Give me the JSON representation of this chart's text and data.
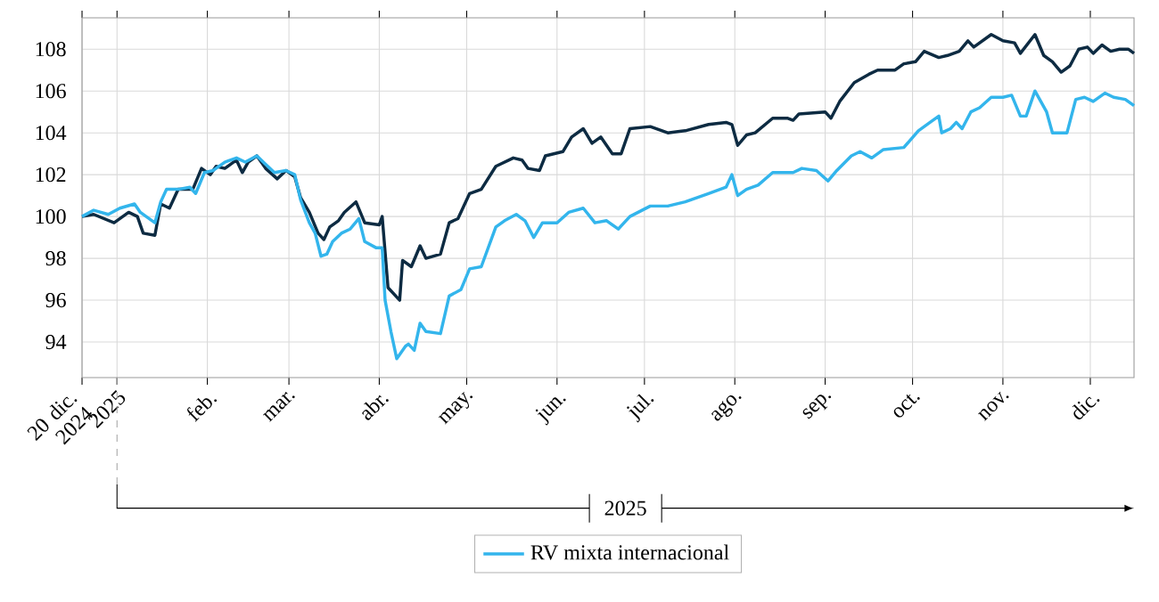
{
  "chart_data": {
    "type": "line",
    "xlim": [
      "2024-12-20",
      "2025-12-16"
    ],
    "ylim": [
      92.3,
      109.5
    ],
    "xticks": [
      {
        "value": "2024-12-20",
        "label": "20 dic. 2024"
      },
      {
        "value": "2025-01-01",
        "label": "2025"
      },
      {
        "value": "2025-02-01",
        "label": "feb."
      },
      {
        "value": "2025-03-01",
        "label": "mar."
      },
      {
        "value": "2025-04-01",
        "label": "abr."
      },
      {
        "value": "2025-05-01",
        "label": "may."
      },
      {
        "value": "2025-06-01",
        "label": "jun."
      },
      {
        "value": "2025-07-01",
        "label": "jul."
      },
      {
        "value": "2025-08-01",
        "label": "ago."
      },
      {
        "value": "2025-09-01",
        "label": "sep."
      },
      {
        "value": "2025-10-01",
        "label": "oct."
      },
      {
        "value": "2025-11-01",
        "label": "nov."
      },
      {
        "value": "2025-12-01",
        "label": "dic."
      }
    ],
    "yticks": [
      94,
      96,
      98,
      100,
      102,
      104,
      106,
      108
    ],
    "grid": true,
    "legend": "bottom",
    "annotations": [
      "2025"
    ],
    "series": [
      {
        "color": "#0d2b42",
        "x": [
          "2024-12-20",
          "2024-12-24",
          "2024-12-31",
          "2025-01-05",
          "2025-01-08",
          "2025-01-10",
          "2025-01-14",
          "2025-01-16",
          "2025-01-19",
          "2025-01-22",
          "2025-01-27",
          "2025-01-30",
          "2025-02-02",
          "2025-02-04",
          "2025-02-07",
          "2025-02-11",
          "2025-02-13",
          "2025-02-15",
          "2025-02-18",
          "2025-02-21",
          "2025-02-25",
          "2025-02-28",
          "2025-03-03",
          "2025-03-05",
          "2025-03-08",
          "2025-03-11",
          "2025-03-13",
          "2025-03-15",
          "2025-03-18",
          "2025-03-20",
          "2025-03-24",
          "2025-03-27",
          "2025-04-01",
          "2025-04-02",
          "2025-04-04",
          "2025-04-08",
          "2025-04-09",
          "2025-04-12",
          "2025-04-15",
          "2025-04-17",
          "2025-04-22",
          "2025-04-25",
          "2025-04-28",
          "2025-05-02",
          "2025-05-06",
          "2025-05-11",
          "2025-05-17",
          "2025-05-20",
          "2025-05-22",
          "2025-05-26",
          "2025-05-28",
          "2025-06-03",
          "2025-06-06",
          "2025-06-10",
          "2025-06-13",
          "2025-06-16",
          "2025-06-20",
          "2025-06-23",
          "2025-06-26",
          "2025-07-03",
          "2025-07-09",
          "2025-07-15",
          "2025-07-23",
          "2025-07-29",
          "2025-07-31",
          "2025-08-02",
          "2025-08-05",
          "2025-08-08",
          "2025-08-14",
          "2025-08-19",
          "2025-08-21",
          "2025-08-23",
          "2025-09-01",
          "2025-09-03",
          "2025-09-06",
          "2025-09-11",
          "2025-09-16",
          "2025-09-19",
          "2025-09-25",
          "2025-09-28",
          "2025-10-02",
          "2025-10-05",
          "2025-10-10",
          "2025-10-13",
          "2025-10-17",
          "2025-10-20",
          "2025-10-22",
          "2025-10-28",
          "2025-11-01",
          "2025-11-05",
          "2025-11-07",
          "2025-11-12",
          "2025-11-15",
          "2025-11-18",
          "2025-11-21",
          "2025-11-24",
          "2025-11-27",
          "2025-11-30",
          "2025-12-02",
          "2025-12-05",
          "2025-12-08",
          "2025-12-11",
          "2025-12-14",
          "2025-12-16"
        ],
        "values": [
          100.0,
          100.1,
          99.7,
          100.2,
          100.0,
          99.2,
          99.1,
          100.6,
          100.4,
          101.3,
          101.3,
          102.3,
          102.0,
          102.4,
          102.3,
          102.7,
          102.1,
          102.6,
          102.9,
          102.3,
          101.8,
          102.2,
          101.9,
          100.9,
          100.2,
          99.2,
          98.9,
          99.5,
          99.8,
          100.2,
          100.7,
          99.7,
          99.6,
          100.0,
          96.6,
          96.0,
          97.9,
          97.6,
          98.6,
          98.0,
          98.2,
          99.7,
          99.9,
          101.1,
          101.3,
          102.4,
          102.8,
          102.7,
          102.3,
          102.2,
          102.9,
          103.1,
          103.8,
          104.2,
          103.5,
          103.8,
          103.0,
          103.0,
          104.2,
          104.3,
          104.0,
          104.1,
          104.4,
          104.5,
          104.4,
          103.4,
          103.9,
          104.0,
          104.7,
          104.7,
          104.6,
          104.9,
          105.0,
          104.7,
          105.5,
          106.4,
          106.8,
          107.0,
          107.0,
          107.3,
          107.4,
          107.9,
          107.6,
          107.7,
          107.9,
          108.4,
          108.1,
          108.7,
          108.4,
          108.3,
          107.8,
          108.7,
          107.7,
          107.4,
          106.9,
          107.2,
          108.0,
          108.1,
          107.8,
          108.2,
          107.9,
          108.0,
          108.0,
          107.8
        ]
      },
      {
        "name": "RV mixta internacional",
        "color": "#33b5ec",
        "x": [
          "2024-12-20",
          "2024-12-24",
          "2024-12-29",
          "2025-01-02",
          "2025-01-07",
          "2025-01-09",
          "2025-01-11",
          "2025-01-14",
          "2025-01-16",
          "2025-01-18",
          "2025-01-22",
          "2025-01-26",
          "2025-01-28",
          "2025-01-31",
          "2025-02-03",
          "2025-02-07",
          "2025-02-11",
          "2025-02-14",
          "2025-02-18",
          "2025-02-21",
          "2025-02-24",
          "2025-02-28",
          "2025-03-03",
          "2025-03-05",
          "2025-03-08",
          "2025-03-10",
          "2025-03-12",
          "2025-03-14",
          "2025-03-16",
          "2025-03-19",
          "2025-03-22",
          "2025-03-25",
          "2025-03-27",
          "2025-03-31",
          "2025-04-02",
          "2025-04-03",
          "2025-04-05",
          "2025-04-07",
          "2025-04-10",
          "2025-04-11",
          "2025-04-13",
          "2025-04-15",
          "2025-04-17",
          "2025-04-22",
          "2025-04-25",
          "2025-04-29",
          "2025-05-02",
          "2025-05-06",
          "2025-05-11",
          "2025-05-14",
          "2025-05-18",
          "2025-05-21",
          "2025-05-24",
          "2025-05-27",
          "2025-06-01",
          "2025-06-05",
          "2025-06-10",
          "2025-06-14",
          "2025-06-18",
          "2025-06-22",
          "2025-06-26",
          "2025-07-03",
          "2025-07-09",
          "2025-07-15",
          "2025-07-23",
          "2025-07-29",
          "2025-07-31",
          "2025-08-02",
          "2025-08-05",
          "2025-08-09",
          "2025-08-14",
          "2025-08-21",
          "2025-08-24",
          "2025-08-29",
          "2025-09-02",
          "2025-09-05",
          "2025-09-10",
          "2025-09-13",
          "2025-09-17",
          "2025-09-21",
          "2025-09-28",
          "2025-10-03",
          "2025-10-07",
          "2025-10-10",
          "2025-10-11",
          "2025-10-14",
          "2025-10-16",
          "2025-10-18",
          "2025-10-21",
          "2025-10-24",
          "2025-10-28",
          "2025-11-01",
          "2025-11-04",
          "2025-11-07",
          "2025-11-09",
          "2025-11-12",
          "2025-11-16",
          "2025-11-18",
          "2025-11-23",
          "2025-11-26",
          "2025-11-29",
          "2025-12-02",
          "2025-12-06",
          "2025-12-09",
          "2025-12-13",
          "2025-12-16"
        ],
        "values": [
          100.0,
          100.3,
          100.1,
          100.4,
          100.6,
          100.2,
          100.0,
          99.7,
          100.7,
          101.3,
          101.3,
          101.4,
          101.1,
          102.1,
          102.2,
          102.6,
          102.8,
          102.6,
          102.9,
          102.5,
          102.1,
          102.2,
          102.0,
          100.8,
          99.7,
          99.2,
          98.1,
          98.2,
          98.8,
          99.2,
          99.4,
          99.9,
          98.8,
          98.5,
          98.5,
          96.0,
          94.5,
          93.2,
          93.8,
          93.9,
          93.6,
          94.9,
          94.5,
          94.4,
          96.2,
          96.5,
          97.5,
          97.6,
          99.5,
          99.8,
          100.1,
          99.8,
          99.0,
          99.7,
          99.7,
          100.2,
          100.4,
          99.7,
          99.8,
          99.4,
          100.0,
          100.5,
          100.5,
          100.7,
          101.1,
          101.4,
          102.0,
          101.0,
          101.3,
          101.5,
          102.1,
          102.1,
          102.3,
          102.2,
          101.7,
          102.2,
          102.9,
          103.1,
          102.8,
          103.2,
          103.3,
          104.1,
          104.5,
          104.8,
          104.0,
          104.2,
          104.5,
          104.2,
          105.0,
          105.2,
          105.7,
          105.7,
          105.8,
          104.8,
          104.8,
          106.0,
          105.0,
          104.0,
          104.0,
          105.6,
          105.7,
          105.5,
          105.9,
          105.7,
          105.6,
          105.3
        ]
      }
    ]
  }
}
